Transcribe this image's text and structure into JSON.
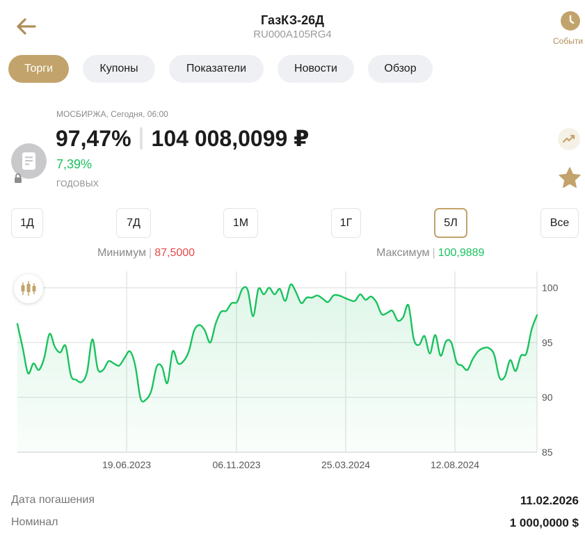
{
  "header": {
    "title": "ГазКЗ-26Д",
    "isin": "RU000A105RG4",
    "events_label": "Событи"
  },
  "tabs": [
    "Торги",
    "Купоны",
    "Показатели",
    "Новости",
    "Обзор"
  ],
  "active_tab": "Торги",
  "quote": {
    "exchange_time": "МОСБИРЖА, Сегодня, 06:00",
    "price_percent": "97,47%",
    "price_rub": "104 008,0099 ₽",
    "yield": "7,39%",
    "yield_label": "ГОДОВЫХ"
  },
  "periods": [
    "1Д",
    "7Д",
    "1М",
    "1Г",
    "5Л",
    "Все"
  ],
  "active_period": "5Л",
  "minmax": {
    "min_label": "Минимум",
    "min_value": "87,5000",
    "max_label": "Максимум",
    "max_value": "100,9889"
  },
  "colors": {
    "accent": "#c2a36b",
    "line": "#19c25e",
    "min": "#e34a4a",
    "max": "#19c25e"
  },
  "icons": {
    "back": "arrow-left-icon",
    "events": "clock-icon",
    "bond": "document-icon",
    "lock": "lock-icon",
    "trend": "trend-icon",
    "favorite": "star-icon",
    "chart_type": "candlestick-icon"
  },
  "chart_data": {
    "type": "line",
    "x_ticks": [
      "19.06.2023",
      "06.11.2023",
      "25.03.2024",
      "12.08.2024"
    ],
    "y_ticks": [
      85,
      90,
      95,
      100
    ],
    "ylim": [
      85,
      101.5
    ],
    "grid": true,
    "values": [
      96.7,
      94.5,
      92.2,
      93.1,
      92.5,
      93.6,
      95.8,
      94.6,
      94.1,
      94.7,
      92.0,
      91.6,
      91.4,
      92.3,
      95.3,
      92.6,
      92.5,
      93.3,
      93.1,
      92.9,
      93.6,
      94.2,
      92.9,
      89.9,
      89.8,
      90.6,
      92.8,
      92.8,
      91.3,
      94.2,
      93.1,
      93.3,
      94.2,
      96.1,
      96.6,
      96.1,
      95.0,
      96.7,
      97.8,
      97.9,
      98.6,
      98.7,
      99.9,
      99.8,
      97.4,
      99.9,
      99.4,
      100.0,
      99.4,
      99.9,
      98.8,
      100.3,
      99.6,
      98.6,
      99.1,
      99.1,
      99.3,
      99.0,
      98.7,
      99.3,
      99.3,
      99.1,
      98.9,
      98.8,
      99.4,
      98.9,
      99.2,
      98.7,
      97.6,
      97.7,
      97.9,
      97.0,
      97.3,
      98.4,
      95.3,
      94.8,
      95.6,
      94.0,
      95.7,
      93.8,
      95.1,
      95.0,
      93.2,
      92.9,
      92.5,
      93.5,
      94.2,
      94.5,
      94.5,
      93.9,
      91.8,
      91.9,
      93.4,
      92.4,
      93.8,
      94.0,
      96.2,
      97.5
    ]
  },
  "info": [
    {
      "label": "Дата погашения",
      "value": "11.02.2026"
    },
    {
      "label": "Номинал",
      "value": "1 000,0000 $"
    }
  ]
}
